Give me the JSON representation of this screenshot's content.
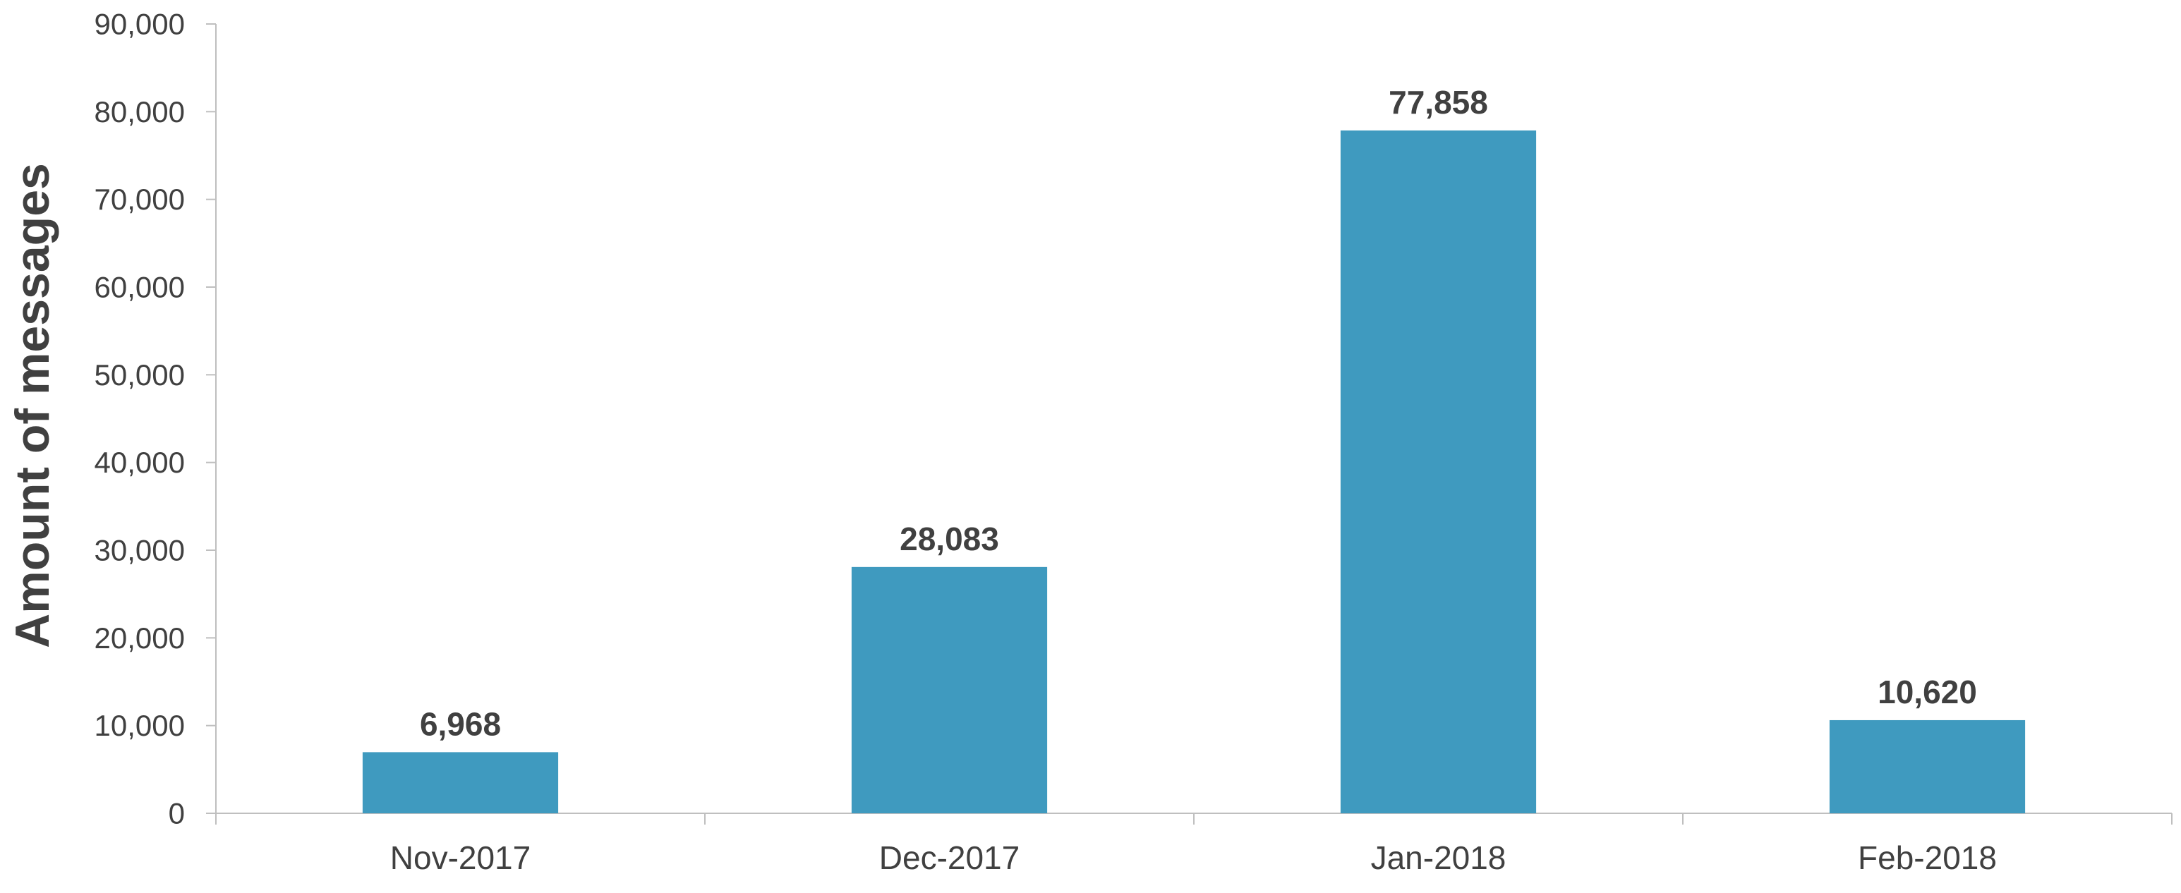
{
  "chart_data": {
    "type": "bar",
    "title": "",
    "xlabel": "",
    "ylabel": "Amount of messages",
    "categories": [
      "Nov-2017",
      "Dec-2017",
      "Jan-2018",
      "Feb-2018"
    ],
    "series": [
      {
        "values": [
          6968,
          28083,
          77858,
          10620
        ],
        "color": "#3F9ABF"
      }
    ],
    "data_labels": [
      "6,968",
      "28,083",
      "77,858",
      "10,620"
    ],
    "ylim": [
      0,
      90000
    ],
    "yticks": [
      0,
      10000,
      20000,
      30000,
      40000,
      50000,
      60000,
      70000,
      80000,
      90000
    ],
    "ytick_labels": [
      "0",
      "10,000",
      "20,000",
      "30,000",
      "40,000",
      "50,000",
      "60,000",
      "70,000",
      "80,000",
      "90,000"
    ],
    "grid": false,
    "legend": "none",
    "colors": {
      "bar": "#3F9ABF",
      "text": "#404040",
      "axis": "#BFBFBF"
    }
  }
}
